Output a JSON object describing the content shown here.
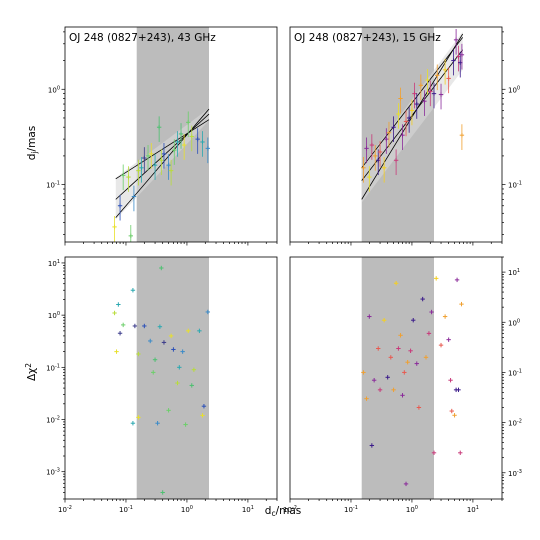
{
  "figure": {
    "ylabel_top": "d_j/mas",
    "ylabel_bottom": "Δχ²",
    "xlabel": "d_c/mas"
  },
  "chart_data": [
    {
      "id": "top-left",
      "type": "scatter",
      "title": "OJ 248 (0827+243), 43 GHz",
      "xscale": "log",
      "yscale": "log",
      "xlim": [
        0.01,
        30
      ],
      "ylim": [
        0.025,
        4.5
      ],
      "xticks": [],
      "yticks": [
        0.1,
        1
      ],
      "ytick_side": "left",
      "shaded_x": [
        0.15,
        2.3
      ],
      "fit_x": [
        0.068,
        2.3
      ],
      "fit_lines": [
        [
          0.115,
          0.48
        ],
        [
          0.045,
          0.62
        ],
        [
          0.07,
          0.55
        ]
      ],
      "fit_band": {
        "lower": [
          0.043,
          0.47
        ],
        "upper": [
          0.118,
          0.63
        ]
      },
      "points": [
        {
          "x": 0.065,
          "y": 0.036,
          "color": "#e8e02a"
        },
        {
          "x": 0.08,
          "y": 0.06,
          "color": "#2a4fb8"
        },
        {
          "x": 0.09,
          "y": 0.125,
          "color": "#6ccf6a"
        },
        {
          "x": 0.11,
          "y": 0.12,
          "color": "#b8dc3a"
        },
        {
          "x": 0.12,
          "y": 0.029,
          "color": "#6ccf6a"
        },
        {
          "x": 0.135,
          "y": 0.075,
          "color": "#3a8ac8"
        },
        {
          "x": 0.16,
          "y": 0.14,
          "color": "#b8dc3a"
        },
        {
          "x": 0.18,
          "y": 0.15,
          "color": "#2aa8b0"
        },
        {
          "x": 0.2,
          "y": 0.19,
          "color": "#3a3a8a"
        },
        {
          "x": 0.23,
          "y": 0.2,
          "color": "#6ccf6a"
        },
        {
          "x": 0.26,
          "y": 0.21,
          "color": "#e8e02a"
        },
        {
          "x": 0.3,
          "y": 0.16,
          "color": "#2aa8b0"
        },
        {
          "x": 0.35,
          "y": 0.4,
          "color": "#4cc070"
        },
        {
          "x": 0.38,
          "y": 0.18,
          "color": "#b8dc3a"
        },
        {
          "x": 0.42,
          "y": 0.21,
          "color": "#2a4fb8"
        },
        {
          "x": 0.5,
          "y": 0.16,
          "color": "#3a8ac8"
        },
        {
          "x": 0.55,
          "y": 0.14,
          "color": "#b8dc3a"
        },
        {
          "x": 0.62,
          "y": 0.23,
          "color": "#6ccf6a"
        },
        {
          "x": 0.7,
          "y": 0.28,
          "color": "#2aa8b0"
        },
        {
          "x": 0.8,
          "y": 0.34,
          "color": "#4cc070"
        },
        {
          "x": 0.9,
          "y": 0.26,
          "color": "#e8e02a"
        },
        {
          "x": 1.05,
          "y": 0.45,
          "color": "#6ccf6a"
        },
        {
          "x": 1.2,
          "y": 0.32,
          "color": "#b8dc3a"
        },
        {
          "x": 1.5,
          "y": 0.3,
          "color": "#2a4fb8"
        },
        {
          "x": 1.8,
          "y": 0.28,
          "color": "#2aa8b0"
        },
        {
          "x": 2.2,
          "y": 0.24,
          "color": "#3a8ac8"
        }
      ]
    },
    {
      "id": "top-right",
      "type": "scatter",
      "title": "OJ 248 (0827+243), 15 GHz",
      "xscale": "log",
      "yscale": "log",
      "xlim": [
        0.01,
        30
      ],
      "ylim": [
        0.025,
        4.5
      ],
      "xticks": [],
      "yticks": [
        0.1,
        1
      ],
      "ytick_side": "right",
      "shaded_x": [
        0.15,
        2.3
      ],
      "fit_x": [
        0.15,
        6.8
      ],
      "fit_lines": [
        [
          0.15,
          3.5
        ],
        [
          0.07,
          3.8
        ],
        [
          0.11,
          2.6
        ]
      ],
      "fit_band": {
        "lower": [
          0.065,
          1.6
        ],
        "upper": [
          0.155,
          4.0
        ]
      },
      "points": [
        {
          "x": 0.16,
          "y": 0.15,
          "color": "#f0a030"
        },
        {
          "x": 0.18,
          "y": 0.24,
          "color": "#8a2a9a"
        },
        {
          "x": 0.2,
          "y": 0.12,
          "color": "#e8e02a"
        },
        {
          "x": 0.22,
          "y": 0.26,
          "color": "#c83a7a"
        },
        {
          "x": 0.25,
          "y": 0.2,
          "color": "#f0a030"
        },
        {
          "x": 0.28,
          "y": 0.18,
          "color": "#3a1a8a"
        },
        {
          "x": 0.3,
          "y": 0.22,
          "color": "#e85a50"
        },
        {
          "x": 0.35,
          "y": 0.15,
          "color": "#f5d020"
        },
        {
          "x": 0.38,
          "y": 0.3,
          "color": "#8a2a9a"
        },
        {
          "x": 0.42,
          "y": 0.35,
          "color": "#f0a030"
        },
        {
          "x": 0.5,
          "y": 0.4,
          "color": "#3a1a8a"
        },
        {
          "x": 0.55,
          "y": 0.18,
          "color": "#c83a7a"
        },
        {
          "x": 0.6,
          "y": 0.55,
          "color": "#e8e02a"
        },
        {
          "x": 0.65,
          "y": 0.8,
          "color": "#f0a030"
        },
        {
          "x": 0.7,
          "y": 0.33,
          "color": "#8a2a9a"
        },
        {
          "x": 0.8,
          "y": 0.46,
          "color": "#e85a50"
        },
        {
          "x": 0.9,
          "y": 0.5,
          "color": "#3a1a8a"
        },
        {
          "x": 1.0,
          "y": 0.6,
          "color": "#f5d020"
        },
        {
          "x": 1.1,
          "y": 0.9,
          "color": "#c83a7a"
        },
        {
          "x": 1.2,
          "y": 0.7,
          "color": "#3a1a8a"
        },
        {
          "x": 1.4,
          "y": 1.1,
          "color": "#f0a030"
        },
        {
          "x": 1.6,
          "y": 0.75,
          "color": "#8a2a9a"
        },
        {
          "x": 1.8,
          "y": 1.25,
          "color": "#e8e02a"
        },
        {
          "x": 2.0,
          "y": 0.95,
          "color": "#c83a7a"
        },
        {
          "x": 2.3,
          "y": 0.9,
          "color": "#3a1a8a"
        },
        {
          "x": 2.6,
          "y": 1.4,
          "color": "#f0a030"
        },
        {
          "x": 3.0,
          "y": 0.88,
          "color": "#8a2a9a"
        },
        {
          "x": 3.5,
          "y": 1.6,
          "color": "#f5d020"
        },
        {
          "x": 4.0,
          "y": 1.3,
          "color": "#e85a50"
        },
        {
          "x": 4.8,
          "y": 2.0,
          "color": "#3a1a8a"
        },
        {
          "x": 5.3,
          "y": 3.3,
          "color": "#8a2a9a"
        },
        {
          "x": 5.8,
          "y": 2.2,
          "color": "#c83a7a"
        },
        {
          "x": 6.2,
          "y": 1.9,
          "color": "#3a1a8a"
        },
        {
          "x": 6.6,
          "y": 2.3,
          "color": "#8a2a9a"
        },
        {
          "x": 6.6,
          "y": 0.33,
          "color": "#f0a030"
        }
      ]
    },
    {
      "id": "bottom-left",
      "type": "scatter",
      "xscale": "log",
      "yscale": "log",
      "xlim": [
        0.01,
        30
      ],
      "ylim": [
        0.0003,
        13
      ],
      "xticks": [
        0.01,
        0.1,
        1,
        10
      ],
      "yticks": [
        0.001,
        0.01,
        0.1,
        1,
        10
      ],
      "ytick_side": "left",
      "shaded_x": [
        0.15,
        2.3
      ],
      "points": [
        {
          "x": 0.065,
          "y": 1.1,
          "color": "#b8dc3a"
        },
        {
          "x": 0.07,
          "y": 0.2,
          "color": "#e8e02a"
        },
        {
          "x": 0.075,
          "y": 1.6,
          "color": "#2aa8b0"
        },
        {
          "x": 0.08,
          "y": 0.45,
          "color": "#3a3a8a"
        },
        {
          "x": 0.09,
          "y": 0.65,
          "color": "#6ccf6a"
        },
        {
          "x": 0.13,
          "y": 3.0,
          "color": "#2aa8b0"
        },
        {
          "x": 0.14,
          "y": 0.62,
          "color": "#3a3a8a"
        },
        {
          "x": 0.13,
          "y": 0.0085,
          "color": "#2aa8b0"
        },
        {
          "x": 0.16,
          "y": 0.011,
          "color": "#e8e02a"
        },
        {
          "x": 0.16,
          "y": 0.18,
          "color": "#b8dc3a"
        },
        {
          "x": 0.2,
          "y": 0.62,
          "color": "#2a4fb8"
        },
        {
          "x": 0.25,
          "y": 0.32,
          "color": "#3a8ac8"
        },
        {
          "x": 0.28,
          "y": 0.08,
          "color": "#6ccf6a"
        },
        {
          "x": 0.3,
          "y": 0.14,
          "color": "#4cc070"
        },
        {
          "x": 0.33,
          "y": 0.0085,
          "color": "#3a8ac8"
        },
        {
          "x": 0.36,
          "y": 0.6,
          "color": "#2aa8b0"
        },
        {
          "x": 0.38,
          "y": 8.0,
          "color": "#4cc070"
        },
        {
          "x": 0.4,
          "y": 0.0004,
          "color": "#4cc070"
        },
        {
          "x": 0.42,
          "y": 0.3,
          "color": "#3a3a8a"
        },
        {
          "x": 0.5,
          "y": 0.015,
          "color": "#6ccf6a"
        },
        {
          "x": 0.55,
          "y": 0.4,
          "color": "#e8e02a"
        },
        {
          "x": 0.6,
          "y": 0.22,
          "color": "#2a4fb8"
        },
        {
          "x": 0.7,
          "y": 0.05,
          "color": "#b8dc3a"
        },
        {
          "x": 0.75,
          "y": 0.1,
          "color": "#2aa8b0"
        },
        {
          "x": 0.85,
          "y": 0.2,
          "color": "#3a8ac8"
        },
        {
          "x": 0.95,
          "y": 0.008,
          "color": "#6ccf6a"
        },
        {
          "x": 1.05,
          "y": 0.5,
          "color": "#e8e02a"
        },
        {
          "x": 1.2,
          "y": 0.045,
          "color": "#4cc070"
        },
        {
          "x": 1.3,
          "y": 0.09,
          "color": "#b8dc3a"
        },
        {
          "x": 1.6,
          "y": 0.5,
          "color": "#2aa8b0"
        },
        {
          "x": 1.8,
          "y": 0.012,
          "color": "#e8e02a"
        },
        {
          "x": 1.9,
          "y": 0.018,
          "color": "#2a4fb8"
        },
        {
          "x": 2.2,
          "y": 1.15,
          "color": "#3a8ac8"
        }
      ]
    },
    {
      "id": "bottom-right",
      "type": "scatter",
      "xscale": "log",
      "yscale": "log",
      "xlim": [
        0.01,
        30
      ],
      "ylim": [
        0.0003,
        20
      ],
      "xticks": [
        0.01,
        0.1,
        1,
        10
      ],
      "yticks": [
        0.001,
        0.01,
        0.1,
        1,
        10
      ],
      "ytick_side": "right",
      "shaded_x": [
        0.15,
        2.3
      ],
      "points": [
        {
          "x": 0.16,
          "y": 0.1,
          "color": "#f0a030"
        },
        {
          "x": 0.18,
          "y": 0.03,
          "color": "#f0a030"
        },
        {
          "x": 0.2,
          "y": 1.3,
          "color": "#8a2a9a"
        },
        {
          "x": 0.22,
          "y": 0.0035,
          "color": "#3a1a8a"
        },
        {
          "x": 0.24,
          "y": 0.07,
          "color": "#8a2a9a"
        },
        {
          "x": 0.28,
          "y": 0.3,
          "color": "#e85a50"
        },
        {
          "x": 0.3,
          "y": 0.045,
          "color": "#c83a7a"
        },
        {
          "x": 0.35,
          "y": 1.1,
          "color": "#f5d020"
        },
        {
          "x": 0.4,
          "y": 0.08,
          "color": "#3a1a8a"
        },
        {
          "x": 0.45,
          "y": 0.2,
          "color": "#e85a50"
        },
        {
          "x": 0.5,
          "y": 0.045,
          "color": "#f0a030"
        },
        {
          "x": 0.55,
          "y": 6.0,
          "color": "#f5d020"
        },
        {
          "x": 0.6,
          "y": 0.3,
          "color": "#c83a7a"
        },
        {
          "x": 0.65,
          "y": 0.55,
          "color": "#f0a030"
        },
        {
          "x": 0.7,
          "y": 0.035,
          "color": "#8a2a9a"
        },
        {
          "x": 0.75,
          "y": 0.1,
          "color": "#e85a50"
        },
        {
          "x": 0.8,
          "y": 0.0006,
          "color": "#8a2a9a"
        },
        {
          "x": 0.85,
          "y": 0.16,
          "color": "#f0a030"
        },
        {
          "x": 0.95,
          "y": 0.27,
          "color": "#c83a7a"
        },
        {
          "x": 1.05,
          "y": 1.1,
          "color": "#3a1a8a"
        },
        {
          "x": 1.2,
          "y": 0.15,
          "color": "#8a2a9a"
        },
        {
          "x": 1.3,
          "y": 0.02,
          "color": "#e85a50"
        },
        {
          "x": 1.5,
          "y": 2.9,
          "color": "#3a1a8a"
        },
        {
          "x": 1.7,
          "y": 0.2,
          "color": "#f0a030"
        },
        {
          "x": 1.9,
          "y": 0.6,
          "color": "#c83a7a"
        },
        {
          "x": 2.1,
          "y": 1.6,
          "color": "#8a2a9a"
        },
        {
          "x": 2.3,
          "y": 0.0025,
          "color": "#c83a7a"
        },
        {
          "x": 2.5,
          "y": 7.5,
          "color": "#f5d020"
        },
        {
          "x": 3.0,
          "y": 0.35,
          "color": "#e85a50"
        },
        {
          "x": 3.5,
          "y": 1.3,
          "color": "#f0a030"
        },
        {
          "x": 4.0,
          "y": 0.45,
          "color": "#8a2a9a"
        },
        {
          "x": 4.3,
          "y": 0.07,
          "color": "#c83a7a"
        },
        {
          "x": 4.5,
          "y": 0.017,
          "color": "#e85a50"
        },
        {
          "x": 5.0,
          "y": 0.014,
          "color": "#f0a030"
        },
        {
          "x": 5.3,
          "y": 0.045,
          "color": "#3a1a8a"
        },
        {
          "x": 5.5,
          "y": 7.0,
          "color": "#8a2a9a"
        },
        {
          "x": 5.8,
          "y": 0.045,
          "color": "#3a1a8a"
        },
        {
          "x": 6.2,
          "y": 0.0025,
          "color": "#c83a7a"
        },
        {
          "x": 6.5,
          "y": 2.3,
          "color": "#f0a030"
        }
      ]
    }
  ]
}
